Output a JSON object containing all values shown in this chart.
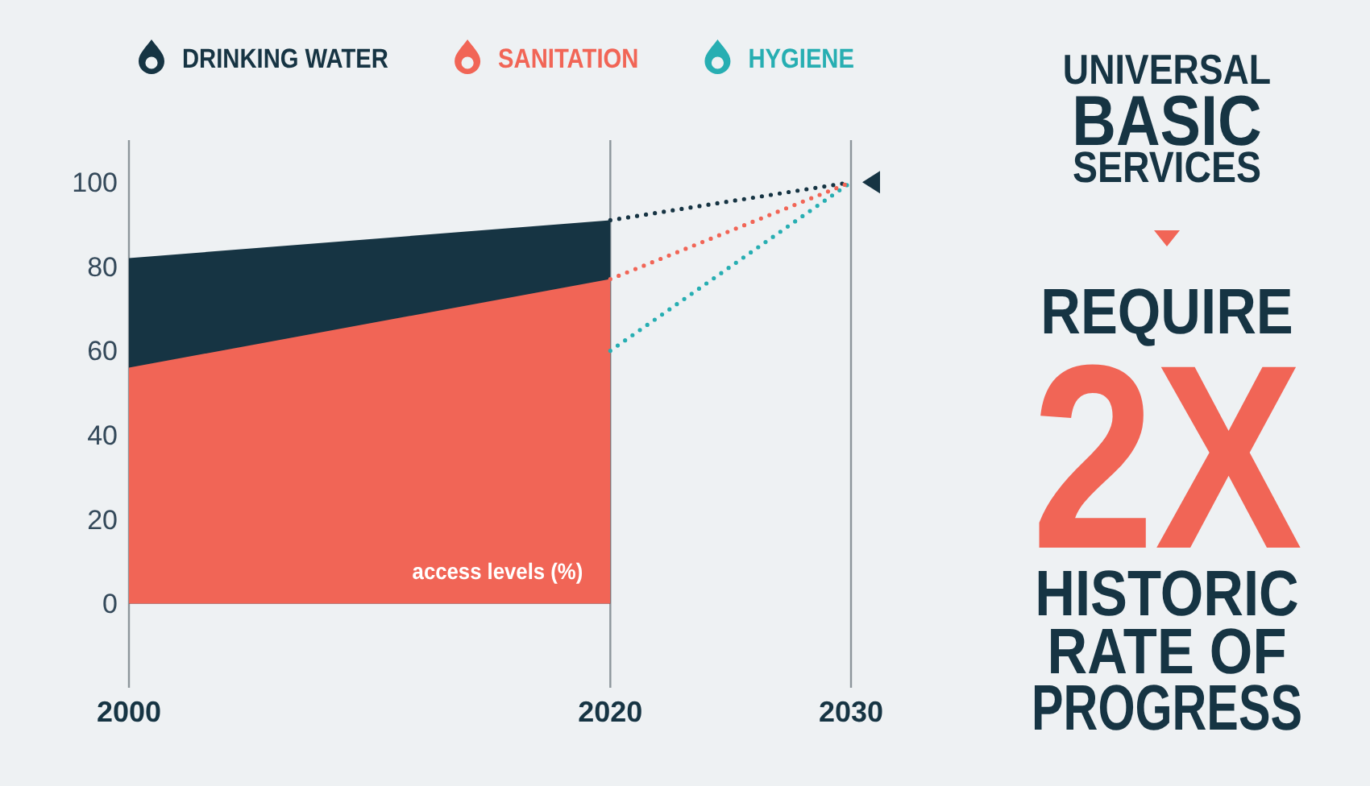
{
  "chart_data": {
    "type": "area",
    "ylabel": "access levels (%)",
    "annotations": [
      "UNIVERSAL",
      "BASIC",
      "SERVICES",
      "REQUIRE",
      "2X",
      "HISTORIC",
      "RATE OF",
      "PROGRESS"
    ],
    "xlim": [
      2000,
      2030
    ],
    "xticks": [
      2000,
      2020,
      2030
    ],
    "ylim": [
      -20,
      110
    ],
    "yticks": [
      0,
      20,
      40,
      60,
      80,
      100
    ],
    "grid": "x",
    "legend": "top",
    "series": [
      {
        "name": "DRINKING WATER",
        "type": "area",
        "color": "#163443",
        "x": [
          2000,
          2020
        ],
        "values": [
          82,
          91
        ]
      },
      {
        "name": "SANITATION",
        "type": "area",
        "color": "#f16556",
        "x": [
          2000,
          2020
        ],
        "values": [
          56,
          77
        ]
      },
      {
        "name": "HYGIENE",
        "type": "line",
        "color": "#27aeb2",
        "x": [
          2020,
          2030
        ],
        "values": [
          60,
          100
        ],
        "line_style": "dotted"
      },
      {
        "type": "line",
        "color": "#163443",
        "x": [
          2020,
          2030
        ],
        "values": [
          91,
          100
        ],
        "line_style": "dotted"
      },
      {
        "type": "line",
        "color": "#f16556",
        "x": [
          2020,
          2030
        ],
        "values": [
          77,
          100
        ],
        "line_style": "dotted"
      }
    ]
  }
}
